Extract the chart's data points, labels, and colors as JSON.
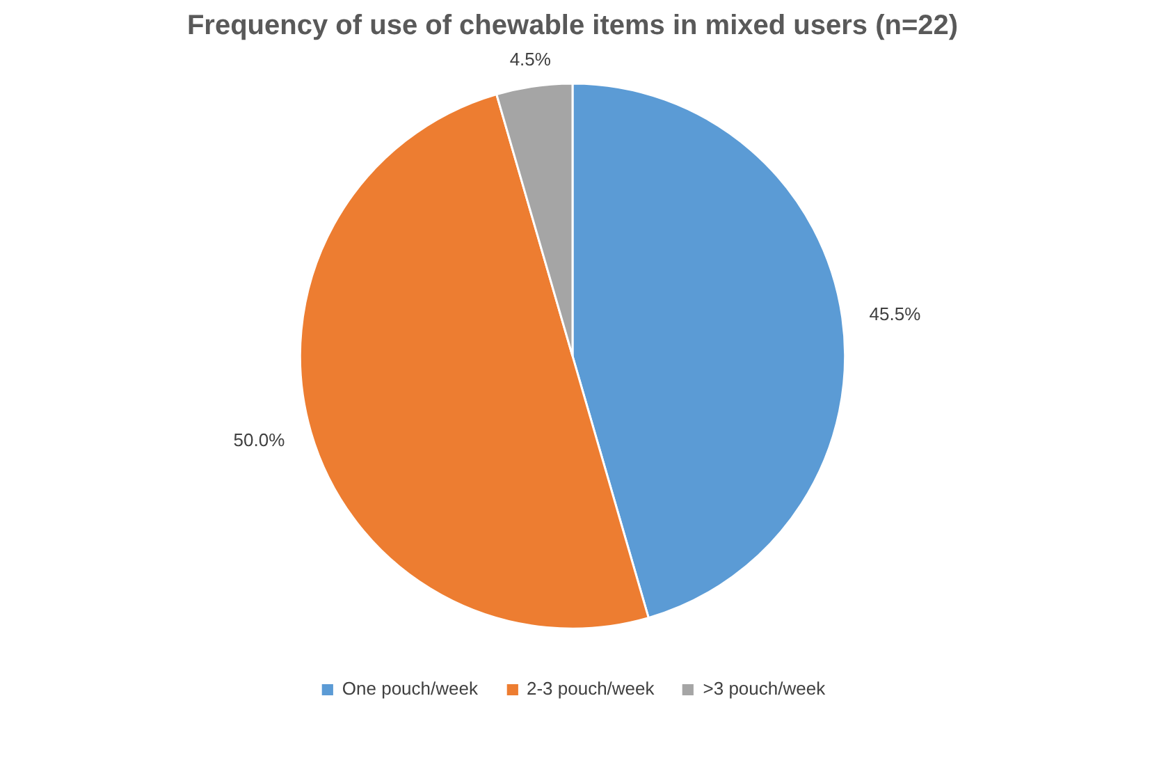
{
  "chart_data": {
    "type": "pie",
    "title": "Frequency of use of chewable items in mixed users (n=22)",
    "categories": [
      "One pouch/week",
      "2-3 pouch/week",
      ">3 pouch/week"
    ],
    "values": [
      45.5,
      50.0,
      4.5
    ],
    "colors": [
      "#5b9bd5",
      "#ed7d31",
      "#a5a5a5"
    ],
    "value_labels": [
      "45.5%",
      "50.0%",
      "4.5%"
    ],
    "legend": "bottom"
  }
}
